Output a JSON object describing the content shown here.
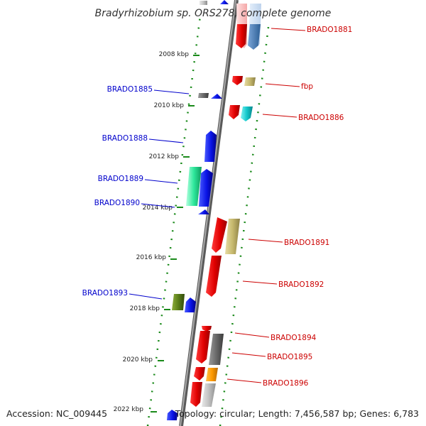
{
  "title": "Bradyrhizobium sp. ORS278, complete genome",
  "footer": {
    "accession": "Accession: NC_009445",
    "topology": "Topology: circular; Length: 7,456,587 bp; Genes: 6,783"
  },
  "ticks": [
    {
      "label": "2008 kbp"
    },
    {
      "label": "2010 kbp"
    },
    {
      "label": "2012 kbp"
    },
    {
      "label": "2014 kbp"
    },
    {
      "label": "2016 kbp"
    },
    {
      "label": "2018 kbp"
    },
    {
      "label": "2020 kbp"
    },
    {
      "label": "2022 kbp"
    }
  ],
  "gene_labels": [
    {
      "text": "BRADO1881",
      "strand": "plus"
    },
    {
      "text": "fbp",
      "strand": "plus"
    },
    {
      "text": "BRADO1886",
      "strand": "plus"
    },
    {
      "text": "BRADO1891",
      "strand": "plus"
    },
    {
      "text": "BRADO1892",
      "strand": "plus"
    },
    {
      "text": "BRADO1894",
      "strand": "plus"
    },
    {
      "text": "BRADO1895",
      "strand": "plus"
    },
    {
      "text": "BRADO1896",
      "strand": "plus"
    },
    {
      "text": "BRADO1885",
      "strand": "minus"
    },
    {
      "text": "BRADO1888",
      "strand": "minus"
    },
    {
      "text": "BRADO1889",
      "strand": "minus"
    },
    {
      "text": "BRADO1890",
      "strand": "minus"
    },
    {
      "text": "BRADO1893",
      "strand": "minus"
    }
  ],
  "colors": {
    "plus_label": "#cc0000",
    "minus_label": "#0000cc",
    "backbone": "#888888",
    "track_dots": "#1a8a1a"
  }
}
